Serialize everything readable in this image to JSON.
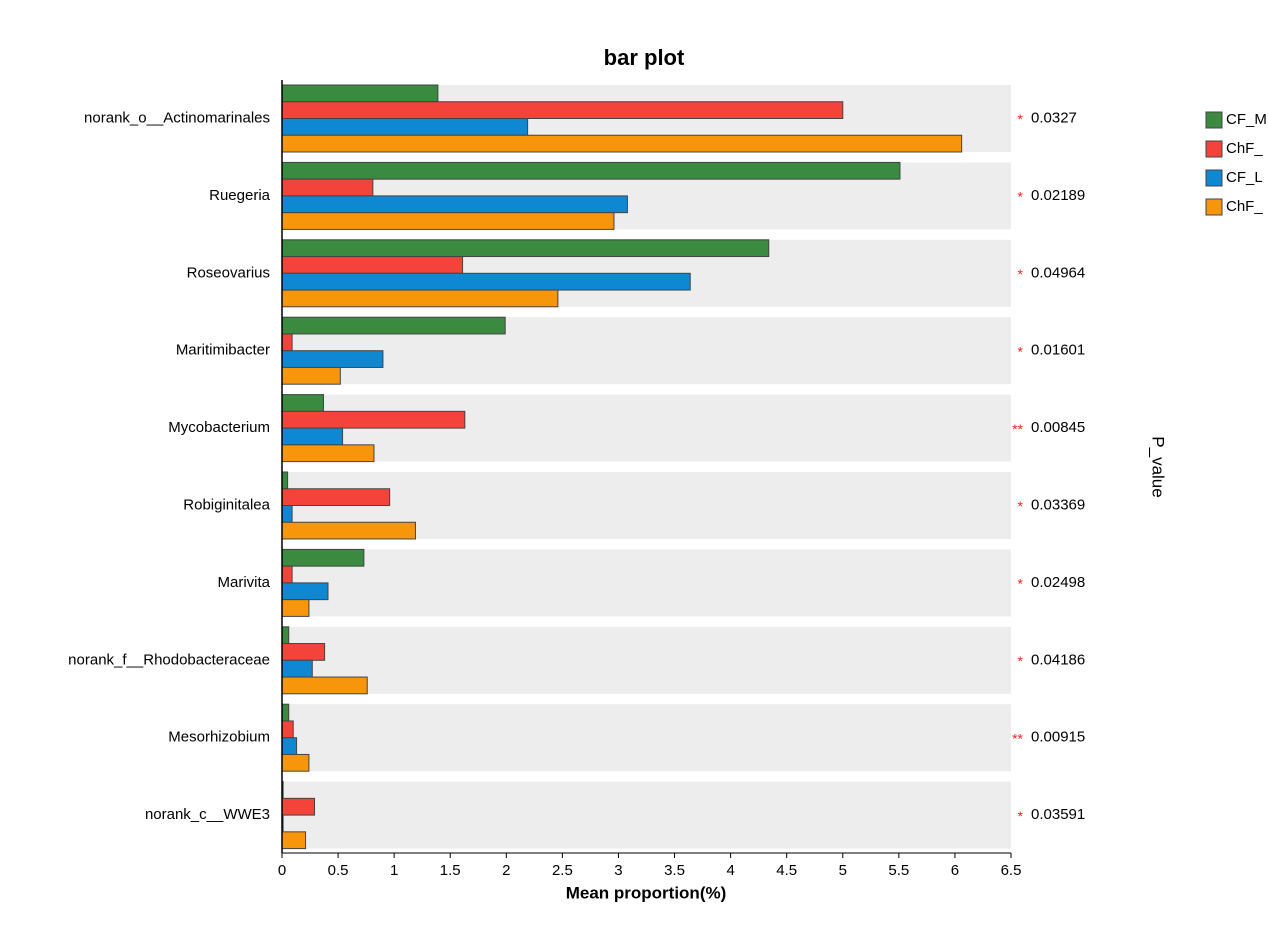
{
  "chart_data": {
    "type": "bar",
    "orientation": "horizontal",
    "title": "bar plot",
    "xlabel": "Mean proportion(%)",
    "right_label": "P_value",
    "categories": [
      "norank_o__Actinomarinales",
      "Ruegeria",
      "Roseovarius",
      "Maritimibacter",
      "Mycobacterium",
      "Robiginitalea",
      "Marivita",
      "norank_f__Rhodobacteraceae",
      "Mesorhizobium",
      "norank_c__WWE3"
    ],
    "series": [
      {
        "name": "CF_M",
        "color": "#3a8a3f",
        "values": [
          1.39,
          5.51,
          4.34,
          1.99,
          0.37,
          0.05,
          0.73,
          0.06,
          0.06,
          0.01
        ]
      },
      {
        "name": "ChF_",
        "color": "#f4433b",
        "values": [
          5.0,
          0.81,
          1.61,
          0.09,
          1.63,
          0.96,
          0.09,
          0.38,
          0.1,
          0.29
        ]
      },
      {
        "name": "CF_L",
        "color": "#0f88d4",
        "values": [
          2.19,
          3.08,
          3.64,
          0.9,
          0.54,
          0.09,
          0.41,
          0.27,
          0.13,
          0.01
        ]
      },
      {
        "name": "ChF_",
        "color": "#f7960a",
        "values": [
          6.06,
          2.96,
          2.46,
          0.52,
          0.82,
          1.19,
          0.24,
          0.76,
          0.24,
          0.21
        ]
      }
    ],
    "significance": [
      "*",
      "*",
      "*",
      "*",
      "**",
      "*",
      "*",
      "*",
      "**",
      "*"
    ],
    "p_values": [
      0.0327,
      0.02189,
      0.04964,
      0.01601,
      0.00845,
      0.03369,
      0.02498,
      0.04186,
      0.00915,
      0.03591
    ],
    "xlim": [
      0,
      6.5
    ],
    "xticks": [
      0,
      0.5,
      1,
      1.5,
      2,
      2.5,
      3,
      3.5,
      4,
      4.5,
      5,
      5.5,
      6,
      6.5
    ]
  }
}
